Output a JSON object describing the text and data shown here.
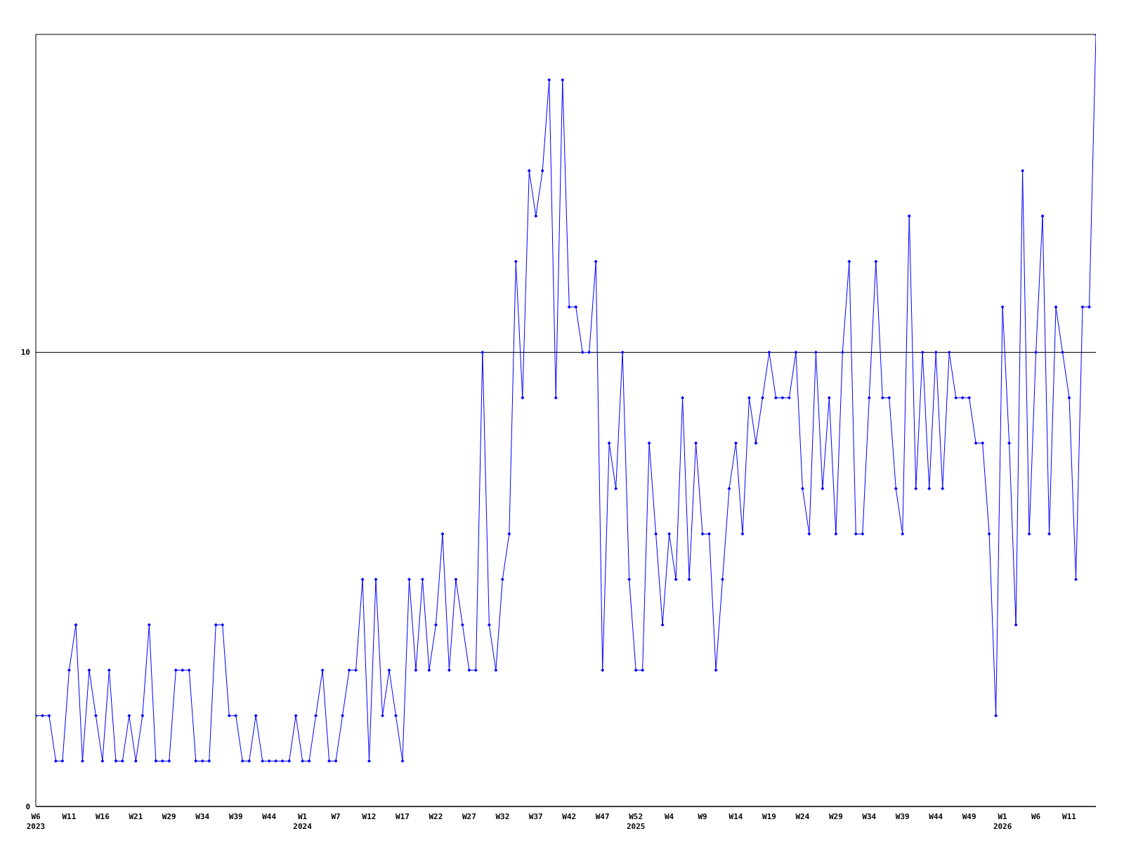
{
  "chart_data": {
    "type": "line",
    "categories": [
      "W6\n2023",
      null,
      null,
      null,
      null,
      "W11",
      null,
      null,
      null,
      null,
      "W16",
      null,
      null,
      null,
      null,
      "W21",
      null,
      null,
      null,
      null,
      "W29",
      null,
      null,
      null,
      null,
      "W34",
      null,
      null,
      null,
      null,
      "W39",
      null,
      null,
      null,
      null,
      "W44",
      null,
      null,
      null,
      null,
      "W1\n2024",
      null,
      null,
      null,
      null,
      "W7",
      null,
      null,
      null,
      null,
      "W12",
      null,
      null,
      null,
      null,
      "W17",
      null,
      null,
      null,
      null,
      "W22",
      null,
      null,
      null,
      null,
      "W27",
      null,
      null,
      null,
      null,
      "W32",
      null,
      null,
      null,
      null,
      "W37",
      null,
      null,
      null,
      null,
      "W42",
      null,
      null,
      null,
      null,
      "W47",
      null,
      null,
      null,
      null,
      "W52\n2025",
      null,
      null,
      null,
      null,
      "W4",
      null,
      null,
      null,
      null,
      "W9",
      null,
      null,
      null,
      null,
      "W14",
      null,
      null,
      null,
      null,
      "W19",
      null,
      null,
      null,
      null,
      "W24",
      null,
      null,
      null,
      null,
      "W29",
      null,
      null,
      null,
      null,
      "W34",
      null,
      null,
      null,
      null,
      "W39",
      null,
      null,
      null,
      null,
      "W44",
      null,
      null,
      null,
      null,
      "W49",
      null,
      null,
      null,
      null,
      "W1\n2026",
      null,
      null,
      null,
      null,
      "W6",
      null,
      null,
      null,
      null,
      "W11",
      null,
      null,
      null,
      null
    ],
    "series": [
      {
        "color": "#0000ff",
        "values": [
          2,
          2,
          2,
          1,
          1,
          3,
          4,
          1,
          3,
          2,
          1,
          3,
          1,
          1,
          2,
          1,
          2,
          4,
          1,
          1,
          1,
          3,
          3,
          3,
          1,
          1,
          1,
          4,
          4,
          2,
          2,
          1,
          1,
          2,
          1,
          1,
          1,
          1,
          1,
          2,
          1,
          1,
          2,
          3,
          1,
          1,
          2,
          3,
          3,
          5,
          1,
          5,
          2,
          3,
          2,
          1,
          5,
          3,
          5,
          3,
          4,
          6,
          3,
          5,
          4,
          3,
          3,
          10,
          4,
          3,
          5,
          6,
          12,
          9,
          14,
          13,
          14,
          16,
          9,
          16,
          11,
          11,
          10,
          10,
          12,
          3,
          8,
          7,
          10,
          5,
          3,
          3,
          8,
          6,
          4,
          6,
          5,
          9,
          5,
          8,
          6,
          6,
          3,
          5,
          7,
          8,
          6,
          9,
          8,
          9,
          10,
          9,
          9,
          9,
          10,
          7,
          6,
          10,
          7,
          9,
          6,
          10,
          12,
          6,
          6,
          9,
          12,
          9,
          9,
          7,
          6,
          13,
          7,
          10,
          7,
          10,
          7,
          10,
          9,
          9,
          9,
          8,
          8,
          6,
          2,
          11,
          8,
          4,
          14,
          6,
          10,
          13,
          6,
          11,
          10,
          9,
          5,
          11,
          11,
          17
        ]
      }
    ],
    "ylim": [
      0,
      17
    ],
    "yticks": [
      0,
      10
    ],
    "grid": "y",
    "marker": "diamond",
    "line_style": "solid"
  }
}
